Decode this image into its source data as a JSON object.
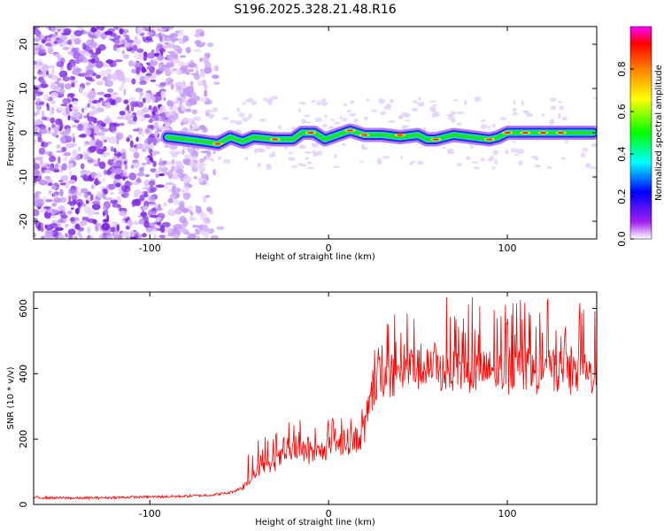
{
  "title": "S196.2025.328.21.48.R16",
  "chart_data": [
    {
      "type": "heatmap",
      "xlabel": "Height of straight line (km)",
      "ylabel": "Frequency (Hz)",
      "xlim": [
        -165,
        150
      ],
      "ylim": [
        -24,
        24
      ],
      "xticks": [
        -100,
        0,
        100
      ],
      "xtick_labels": [
        "-100",
        "0",
        "100"
      ],
      "yticks": [
        -20,
        -10,
        0,
        10,
        20
      ],
      "ytick_labels": [
        "-20",
        "-10",
        "0",
        "10",
        "20"
      ],
      "noise_region_x": [
        -165,
        -60
      ],
      "signal_start_x": -90,
      "signal_ridge": {
        "x": [
          -90,
          -80,
          -70,
          -62,
          -55,
          -48,
          -42,
          -30,
          -20,
          -15,
          -8,
          -2,
          5,
          12,
          20,
          30,
          40,
          50,
          55,
          60,
          70,
          80,
          90,
          95,
          100,
          110,
          120,
          130,
          140,
          148
        ],
        "freq": [
          -1,
          -1.5,
          -2,
          -2.5,
          -1,
          -2,
          -1,
          -1.5,
          -1.5,
          0,
          0,
          -1.5,
          -0.5,
          0.5,
          -0.5,
          -0.5,
          -1,
          -0.5,
          -1.5,
          -1.5,
          -0.5,
          -1,
          -1.5,
          -1,
          0,
          0,
          0,
          0,
          0,
          0
        ]
      },
      "colorbar": {
        "label": "Normalized spectral amplitude",
        "range": [
          0.0,
          1.0
        ],
        "ticks": [
          0.0,
          0.2,
          0.4,
          0.6,
          0.8
        ],
        "tick_labels": [
          "0.0",
          "0.2",
          "0.4",
          "0.6",
          "0.8"
        ],
        "colors": [
          "#ffffff",
          "#a020f0",
          "#0000ff",
          "#00ffff",
          "#00ff00",
          "#ffff00",
          "#ff8000",
          "#ff0000",
          "#ff00ff"
        ]
      }
    },
    {
      "type": "line",
      "xlabel": "Height of straight line (km)",
      "ylabel": "SNR (10 * v/v)",
      "xlim": [
        -165,
        150
      ],
      "ylim": [
        0,
        650
      ],
      "xticks": [
        -100,
        0,
        100
      ],
      "xtick_labels": [
        "-100",
        "0",
        "100"
      ],
      "yticks": [
        0,
        200,
        400,
        600
      ],
      "ytick_labels": [
        "0",
        "200",
        "400",
        "600"
      ],
      "color": "#ff0000",
      "series": [
        {
          "name": "SNR",
          "x": [
            -165,
            -140,
            -120,
            -100,
            -80,
            -65,
            -55,
            -48,
            -42,
            -38,
            -35,
            -30,
            -25,
            -20,
            -15,
            -10,
            -5,
            0,
            5,
            10,
            15,
            20,
            22,
            25,
            28,
            35,
            45,
            55,
            60,
            70,
            80,
            90,
            100,
            110,
            120,
            130,
            140,
            150
          ],
          "y": [
            20,
            18,
            20,
            22,
            24,
            28,
            35,
            50,
            80,
            110,
            100,
            120,
            140,
            150,
            155,
            140,
            150,
            160,
            170,
            180,
            185,
            205,
            260,
            330,
            370,
            370,
            390,
            395,
            390,
            385,
            385,
            390,
            380,
            385,
            380,
            385,
            375,
            380
          ]
        }
      ]
    }
  ]
}
